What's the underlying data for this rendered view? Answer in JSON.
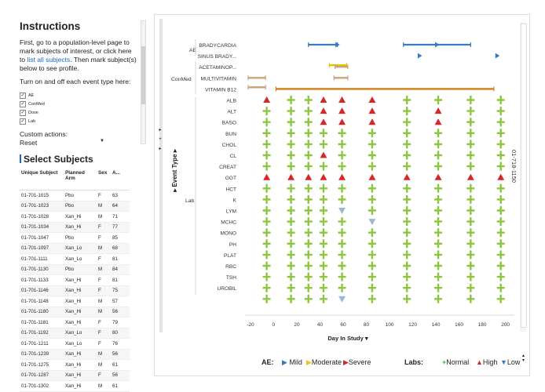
{
  "instructions": {
    "title": "Instructions",
    "text_part1": "First, go to a population-level page to mark subjects of interest, or click here to ",
    "link_text": "list all subjects",
    "text_part2": ". Then mark subject(s) below to see profile.",
    "toggle_label": "Turn on and off each event type here:",
    "event_types": [
      "AE",
      "ConMed",
      "Dose",
      "Lab"
    ],
    "custom_actions_label": "Custom actions:",
    "custom_action_selected": "Reset"
  },
  "subjects": {
    "title": "Select Subjects",
    "columns": [
      "Unique Subject",
      "Planned Arm",
      "Sex",
      "A..."
    ],
    "rows": [
      [
        "01-701-1015",
        "Pbo",
        "F",
        "63"
      ],
      [
        "01-701-1023",
        "Pbo",
        "M",
        "64"
      ],
      [
        "01-701-1028",
        "Xan_Hi",
        "M",
        "71"
      ],
      [
        "01-701-1034",
        "Xan_Hi",
        "F",
        "77"
      ],
      [
        "01-701-1047",
        "Pbo",
        "F",
        "85"
      ],
      [
        "01-701-1097",
        "Xan_Lo",
        "M",
        "68"
      ],
      [
        "01-701-1111",
        "Xan_Lo",
        "F",
        "81"
      ],
      [
        "01-701-1130",
        "Pbo",
        "M",
        "84"
      ],
      [
        "01-701-1133",
        "Xan_Hi",
        "F",
        "81"
      ],
      [
        "01-701-1146",
        "Xan_Hi",
        "F",
        "75"
      ],
      [
        "01-701-1148",
        "Xan_Hi",
        "M",
        "57"
      ],
      [
        "01-701-1180",
        "Xan_Hi",
        "M",
        "56"
      ],
      [
        "01-701-1181",
        "Xan_Hi",
        "F",
        "79"
      ],
      [
        "01-701-1192",
        "Xan_Lo",
        "F",
        "80"
      ],
      [
        "01-701-1211",
        "Xan_Lo",
        "F",
        "76"
      ],
      [
        "01-701-1239",
        "Xan_Hi",
        "M",
        "56"
      ],
      [
        "01-701-1275",
        "Xan_Hi",
        "M",
        "61"
      ],
      [
        "01-701-1287",
        "Xan_Hi",
        "F",
        "56"
      ],
      [
        "01-701-1302",
        "Xan_Hi",
        "M",
        "61"
      ]
    ]
  },
  "chart": {
    "y_axis_title": "Event Type",
    "x_axis_title": "Day In Study",
    "subject_label": "01-718-1150",
    "groups": [
      "AE",
      "ConMed",
      "Lab"
    ],
    "colors": {
      "ae": "#3a7bbf",
      "conmed": "#c8a27a",
      "dose_yellow": "#e2c400",
      "dose_orange": "#d37c12",
      "normal": "#8cc63f",
      "high": "#d62728",
      "low": "#9ab7d3"
    },
    "legend": {
      "ae_label": "AE:",
      "mild": "Mild",
      "moderate": "Moderate",
      "severe": "Severe",
      "labs_label": "Labs:",
      "normal": "Normal",
      "high": "High",
      "low": "Low"
    }
  },
  "chart_data": {
    "type": "scatter",
    "x_ticks": [
      -20,
      0,
      20,
      40,
      60,
      80,
      100,
      120,
      140,
      160,
      180,
      200
    ],
    "xlim": [
      -22,
      205
    ],
    "rows": [
      "BRADYCARDIA",
      "SINUS BRADY...",
      "ACETAMINOP...",
      "MULTIVITAMIN",
      "VITAMIN B12",
      "ALB",
      "ALT",
      "BASO",
      "BUN",
      "CHOL",
      "CL",
      "CREAT",
      "GGT",
      "HCT",
      "K",
      "LYM",
      "MCHC",
      "MONO",
      "PH",
      "PLAT",
      "RBC",
      "TSH",
      "UROBIL",
      ""
    ],
    "ae_intervals": [
      {
        "row": "BRADYCARDIA",
        "start": 30,
        "end": 55,
        "severity": "Mild"
      },
      {
        "row": "BRADYCARDIA",
        "start": 112,
        "end": 170,
        "severity": "Mild"
      }
    ],
    "ae_points": [
      {
        "row": "BRADYCARDIA",
        "x": 55,
        "severity": "Mild"
      },
      {
        "row": "BRADYCARDIA",
        "x": 141,
        "severity": "Mild"
      },
      {
        "row": "SINUS BRADY...",
        "x": 126,
        "severity": "Mild"
      },
      {
        "row": "SINUS BRADY...",
        "x": 193,
        "severity": "Mild"
      }
    ],
    "conmed_intervals": [
      {
        "row": "ACETAMINOP...",
        "start": 48,
        "end": 63,
        "color": "dose_yellow"
      },
      {
        "row": "ACETAMINOP...",
        "start": 53,
        "end": 64,
        "color": "conmed"
      },
      {
        "row": "MULTIVITAMIN",
        "start": -22,
        "end": -7,
        "color": "conmed"
      },
      {
        "row": "MULTIVITAMIN",
        "start": 52,
        "end": 64,
        "color": "conmed"
      },
      {
        "row": "MULTIVITAMIN",
        "start": -22,
        "end": -7,
        "color": "conmed",
        "offset": 1
      }
    ],
    "dose_interval": {
      "row": "VITAMIN B12",
      "start": 2,
      "end": 190
    },
    "lab_days": [
      -6,
      15,
      30,
      43,
      59,
      85,
      115,
      142,
      170,
      196
    ],
    "high_points": [
      {
        "row": "ALB",
        "x": -6
      },
      {
        "row": "ALB",
        "x": 43
      },
      {
        "row": "ALB",
        "x": 59
      },
      {
        "row": "ALB",
        "x": 85
      },
      {
        "row": "ALT",
        "x": 43
      },
      {
        "row": "ALT",
        "x": 59
      },
      {
        "row": "ALT",
        "x": 85
      },
      {
        "row": "ALT",
        "x": 142
      },
      {
        "row": "BASO",
        "x": 43
      },
      {
        "row": "BASO",
        "x": 59
      },
      {
        "row": "BASO",
        "x": 85
      },
      {
        "row": "BASO",
        "x": 142
      },
      {
        "row": "CL",
        "x": 43
      },
      {
        "row": "GGT",
        "x": -6
      },
      {
        "row": "GGT",
        "x": 15
      },
      {
        "row": "GGT",
        "x": 30
      },
      {
        "row": "GGT",
        "x": 43
      },
      {
        "row": "GGT",
        "x": 59
      },
      {
        "row": "GGT",
        "x": 85
      },
      {
        "row": "GGT",
        "x": 115
      },
      {
        "row": "GGT",
        "x": 142
      },
      {
        "row": "GGT",
        "x": 170
      },
      {
        "row": "GGT",
        "x": 196
      }
    ],
    "low_points": [
      {
        "row": "LYM",
        "x": 59
      },
      {
        "row": "MCHC",
        "x": 85
      },
      {
        "row": "",
        "x": 59
      }
    ]
  }
}
